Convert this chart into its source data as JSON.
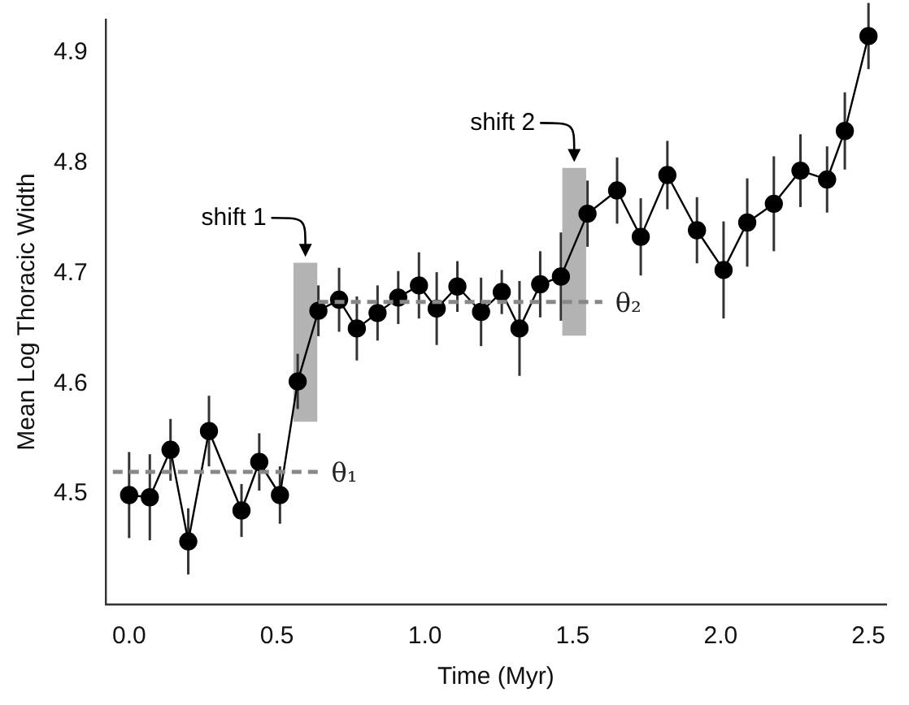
{
  "chart_data": {
    "type": "line",
    "xlabel": "Time (Myr)",
    "ylabel": "Mean Log Thoracic Width",
    "xlim": [
      -0.08,
      2.56
    ],
    "xticks": [
      {
        "value": 0,
        "label": "0.0"
      },
      0.5,
      {
        "value": 1,
        "label": "1.0"
      },
      1.5,
      {
        "value": 2,
        "label": "2.0"
      },
      2.5
    ],
    "ylim": [
      4.4,
      4.93
    ],
    "yticks": [
      4.5,
      4.6,
      4.7,
      4.8,
      4.9
    ],
    "grid": false,
    "legend": false,
    "annotations": [
      "shift 1",
      "shift 2"
    ],
    "series": [
      {
        "type": "bar",
        "color": "#b3b3b3",
        "x": [
          0.596,
          1.505
        ],
        "base": [
          4.566,
          4.644
        ],
        "values": [
          0.143,
          0.151
        ]
      },
      {
        "name": "θ₁",
        "type": "line",
        "color": "#888888",
        "line_style": "dashed",
        "marker": "none",
        "x": [
          -0.055,
          0.64
        ],
        "values": [
          4.52,
          4.52
        ]
      },
      {
        "name": "θ₂",
        "type": "line",
        "color": "#888888",
        "line_style": "dashed",
        "marker": "none",
        "x": [
          0.64,
          1.6
        ],
        "values": [
          4.674,
          4.674
        ]
      },
      {
        "color": "#000000",
        "marker": "circle",
        "x": [
          0,
          0.07,
          0.14,
          0.2,
          0.27,
          0.38,
          0.44,
          0.51,
          0.57,
          0.64,
          0.71,
          0.77,
          0.84,
          0.91,
          0.98,
          1.04,
          1.11,
          1.19,
          1.26,
          1.32,
          1.39,
          1.46,
          1.55,
          1.65,
          1.73,
          1.82,
          1.92,
          2.01,
          2.09,
          2.18,
          2.27,
          2.36,
          2.42,
          2.5
        ],
        "values": [
          4.499,
          4.497,
          4.54,
          4.457,
          4.557,
          4.485,
          4.529,
          4.499,
          4.602,
          4.666,
          4.676,
          4.65,
          4.664,
          4.678,
          4.689,
          4.668,
          4.688,
          4.665,
          4.683,
          4.65,
          4.69,
          4.697,
          4.754,
          4.775,
          4.733,
          4.789,
          4.739,
          4.703,
          4.746,
          4.763,
          4.793,
          4.785,
          4.829,
          4.915
        ],
        "errors": [
          0.039,
          0.039,
          0.028,
          0.03,
          0.032,
          0.024,
          0.026,
          0.026,
          0.025,
          0.023,
          0.029,
          0.029,
          0.025,
          0.024,
          0.03,
          0.033,
          0.023,
          0.031,
          0.02,
          0.043,
          0.03,
          0.04,
          0.03,
          0.03,
          0.035,
          0.031,
          0.03,
          0.044,
          0.04,
          0.043,
          0.033,
          0.03,
          0.035,
          0.03
        ]
      }
    ]
  }
}
